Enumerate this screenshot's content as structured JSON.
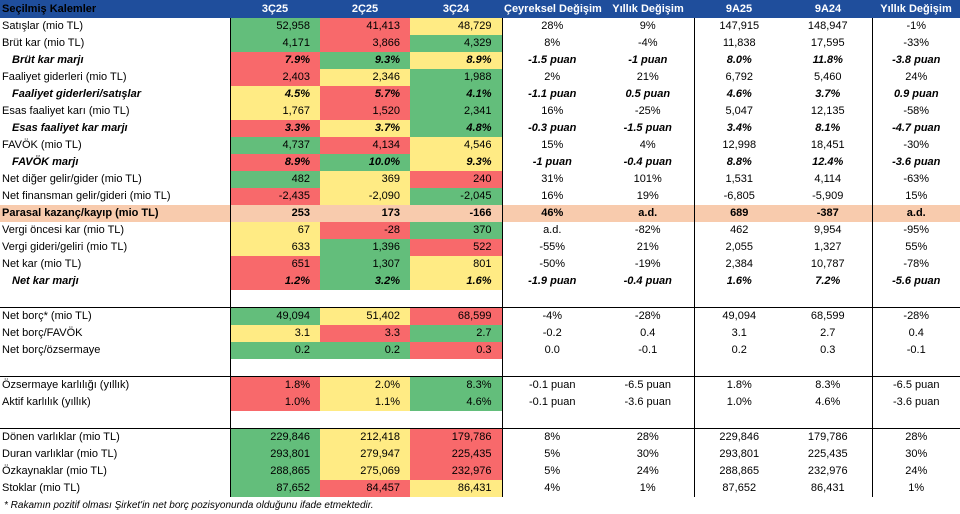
{
  "headers": [
    "Seçilmiş Kalemler",
    "3Ç25",
    "2Ç25",
    "3Ç24",
    "Çeyreksel Değişim",
    "Yıllık Değişim",
    "9A25",
    "9A24",
    "Yıllık Değişim"
  ],
  "rows": [
    {
      "label": "Satışlar (mio TL)",
      "q": [
        "52,958",
        "41,413",
        "48,729"
      ],
      "qc": [
        "g",
        "r",
        "y"
      ],
      "qoq": "28%",
      "yoy": "9%",
      "a": [
        "147,915",
        "148,947"
      ],
      "ay": "-1%"
    },
    {
      "label": "Brüt kar (mio TL)",
      "q": [
        "4,171",
        "3,866",
        "4,329"
      ],
      "qc": [
        "g",
        "r",
        "g"
      ],
      "qoq": "8%",
      "yoy": "-4%",
      "a": [
        "11,838",
        "17,595"
      ],
      "ay": "-33%"
    },
    {
      "label": "Brüt kar marjı",
      "style": "em",
      "q": [
        "7.9%",
        "9.3%",
        "8.9%"
      ],
      "qc": [
        "r",
        "g",
        "y"
      ],
      "qoq": "-1.5 puan",
      "yoy": "-1 puan",
      "a": [
        "8.0%",
        "11.8%"
      ],
      "ay": "-3.8 puan"
    },
    {
      "label": "Faaliyet giderleri (mio TL)",
      "q": [
        "2,403",
        "2,346",
        "1,988"
      ],
      "qc": [
        "r",
        "y",
        "g"
      ],
      "qoq": "2%",
      "yoy": "21%",
      "a": [
        "6,792",
        "5,460"
      ],
      "ay": "24%"
    },
    {
      "label": "Faaliyet giderleri/satışlar",
      "style": "em",
      "q": [
        "4.5%",
        "5.7%",
        "4.1%"
      ],
      "qc": [
        "y",
        "r",
        "g"
      ],
      "qoq": "-1.1 puan",
      "yoy": "0.5 puan",
      "a": [
        "4.6%",
        "3.7%"
      ],
      "ay": "0.9 puan"
    },
    {
      "label": "Esas faaliyet karı (mio TL)",
      "q": [
        "1,767",
        "1,520",
        "2,341"
      ],
      "qc": [
        "y",
        "r",
        "g"
      ],
      "qoq": "16%",
      "yoy": "-25%",
      "a": [
        "5,047",
        "12,135"
      ],
      "ay": "-58%"
    },
    {
      "label": "Esas faaliyet kar marjı",
      "style": "em",
      "q": [
        "3.3%",
        "3.7%",
        "4.8%"
      ],
      "qc": [
        "r",
        "y",
        "g"
      ],
      "qoq": "-0.3 puan",
      "yoy": "-1.5 puan",
      "a": [
        "3.4%",
        "8.1%"
      ],
      "ay": "-4.7 puan"
    },
    {
      "label": "FAVÖK (mio TL)",
      "q": [
        "4,737",
        "4,134",
        "4,546"
      ],
      "qc": [
        "g",
        "r",
        "y"
      ],
      "qoq": "15%",
      "yoy": "4%",
      "a": [
        "12,998",
        "18,451"
      ],
      "ay": "-30%"
    },
    {
      "label": "FAVÖK marjı",
      "style": "em",
      "q": [
        "8.9%",
        "10.0%",
        "9.3%"
      ],
      "qc": [
        "r",
        "g",
        "y"
      ],
      "qoq": "-1 puan",
      "yoy": "-0.4 puan",
      "a": [
        "8.8%",
        "12.4%"
      ],
      "ay": "-3.6 puan"
    },
    {
      "label": "Net diğer gelir/gider (mio TL)",
      "q": [
        "482",
        "369",
        "240"
      ],
      "qc": [
        "g",
        "y",
        "r"
      ],
      "qoq": "31%",
      "yoy": "101%",
      "a": [
        "1,531",
        "4,114"
      ],
      "ay": "-63%"
    },
    {
      "label": "Net finansman gelir/gideri (mio TL)",
      "q": [
        "-2,435",
        "-2,090",
        "-2,045"
      ],
      "qc": [
        "r",
        "y",
        "g"
      ],
      "qoq": "16%",
      "yoy": "19%",
      "a": [
        "-6,805",
        "-5,909"
      ],
      "ay": "15%"
    },
    {
      "label": "Parasal kazanç/kayıp (mio TL)",
      "style": "hl",
      "q": [
        "253",
        "173",
        "-166"
      ],
      "qc": [
        "",
        "",
        ""
      ],
      "qoq": "46%",
      "yoy": "a.d.",
      "a": [
        "689",
        "-387"
      ],
      "ay": "a.d."
    },
    {
      "label": "Vergi öncesi kar (mio TL)",
      "q": [
        "67",
        "-28",
        "370"
      ],
      "qc": [
        "y",
        "r",
        "g"
      ],
      "qoq": "a.d.",
      "yoy": "-82%",
      "a": [
        "462",
        "9,954"
      ],
      "ay": "-95%"
    },
    {
      "label": "Vergi gideri/geliri (mio TL)",
      "q": [
        "633",
        "1,396",
        "522"
      ],
      "qc": [
        "y",
        "g",
        "r"
      ],
      "qoq": "-55%",
      "yoy": "21%",
      "a": [
        "2,055",
        "1,327"
      ],
      "ay": "55%"
    },
    {
      "label": "Net kar (mio TL)",
      "q": [
        "651",
        "1,307",
        "801"
      ],
      "qc": [
        "r",
        "g",
        "y"
      ],
      "qoq": "-50%",
      "yoy": "-19%",
      "a": [
        "2,384",
        "10,787"
      ],
      "ay": "-78%"
    },
    {
      "label": "Net kar marjı",
      "style": "em",
      "q": [
        "1.2%",
        "3.2%",
        "1.6%"
      ],
      "qc": [
        "r",
        "g",
        "y"
      ],
      "qoq": "-1.9 puan",
      "yoy": "-0.4 puan",
      "a": [
        "1.6%",
        "7.2%"
      ],
      "ay": "-5.6 puan"
    },
    {
      "blank": true
    },
    {
      "label": "Net borç* (mio TL)",
      "q": [
        "49,094",
        "51,402",
        "68,599"
      ],
      "qc": [
        "g",
        "y",
        "r"
      ],
      "qoq": "-4%",
      "yoy": "-28%",
      "a": [
        "49,094",
        "68,599"
      ],
      "ay": "-28%"
    },
    {
      "label": "Net borç/FAVÖK",
      "q": [
        "3.1",
        "3.3",
        "2.7"
      ],
      "qc": [
        "y",
        "r",
        "g"
      ],
      "qoq": "-0.2",
      "yoy": "0.4",
      "a": [
        "3.1",
        "2.7"
      ],
      "ay": "0.4"
    },
    {
      "label": "Net borç/özsermaye",
      "q": [
        "0.2",
        "0.2",
        "0.3"
      ],
      "qc": [
        "g",
        "g",
        "r"
      ],
      "qoq": "0.0",
      "yoy": "-0.1",
      "a": [
        "0.2",
        "0.3"
      ],
      "ay": "-0.1"
    },
    {
      "blank": true
    },
    {
      "label": "Özsermaye karlılığı (yıllık)",
      "q": [
        "1.8%",
        "2.0%",
        "8.3%"
      ],
      "qc": [
        "r",
        "y",
        "g"
      ],
      "qoq": "-0.1 puan",
      "yoy": "-6.5 puan",
      "a": [
        "1.8%",
        "8.3%"
      ],
      "ay": "-6.5 puan"
    },
    {
      "label": "Aktif karlılık (yıllık)",
      "q": [
        "1.0%",
        "1.1%",
        "4.6%"
      ],
      "qc": [
        "r",
        "y",
        "g"
      ],
      "qoq": "-0.1 puan",
      "yoy": "-3.6 puan",
      "a": [
        "1.0%",
        "4.6%"
      ],
      "ay": "-3.6 puan"
    },
    {
      "blank": true
    },
    {
      "label": "Dönen varlıklar (mio TL)",
      "q": [
        "229,846",
        "212,418",
        "179,786"
      ],
      "qc": [
        "g",
        "y",
        "r"
      ],
      "qoq": "8%",
      "yoy": "28%",
      "a": [
        "229,846",
        "179,786"
      ],
      "ay": "28%"
    },
    {
      "label": "Duran varlıklar (mio TL)",
      "q": [
        "293,801",
        "279,947",
        "225,435"
      ],
      "qc": [
        "g",
        "y",
        "r"
      ],
      "qoq": "5%",
      "yoy": "30%",
      "a": [
        "293,801",
        "225,435"
      ],
      "ay": "30%"
    },
    {
      "label": "Özkaynaklar (mio TL)",
      "q": [
        "288,865",
        "275,069",
        "232,976"
      ],
      "qc": [
        "g",
        "y",
        "r"
      ],
      "qoq": "5%",
      "yoy": "24%",
      "a": [
        "288,865",
        "232,976"
      ],
      "ay": "24%"
    },
    {
      "label": "Stoklar (mio TL)",
      "q": [
        "87,652",
        "84,457",
        "86,431"
      ],
      "qc": [
        "g",
        "r",
        "y"
      ],
      "qoq": "4%",
      "yoy": "1%",
      "a": [
        "87,652",
        "86,431"
      ],
      "ay": "1%"
    }
  ],
  "footnote": "* Rakamın pozitif olması Şirket'in net borç pozisyonunda olduğunu ifade etmektedir."
}
